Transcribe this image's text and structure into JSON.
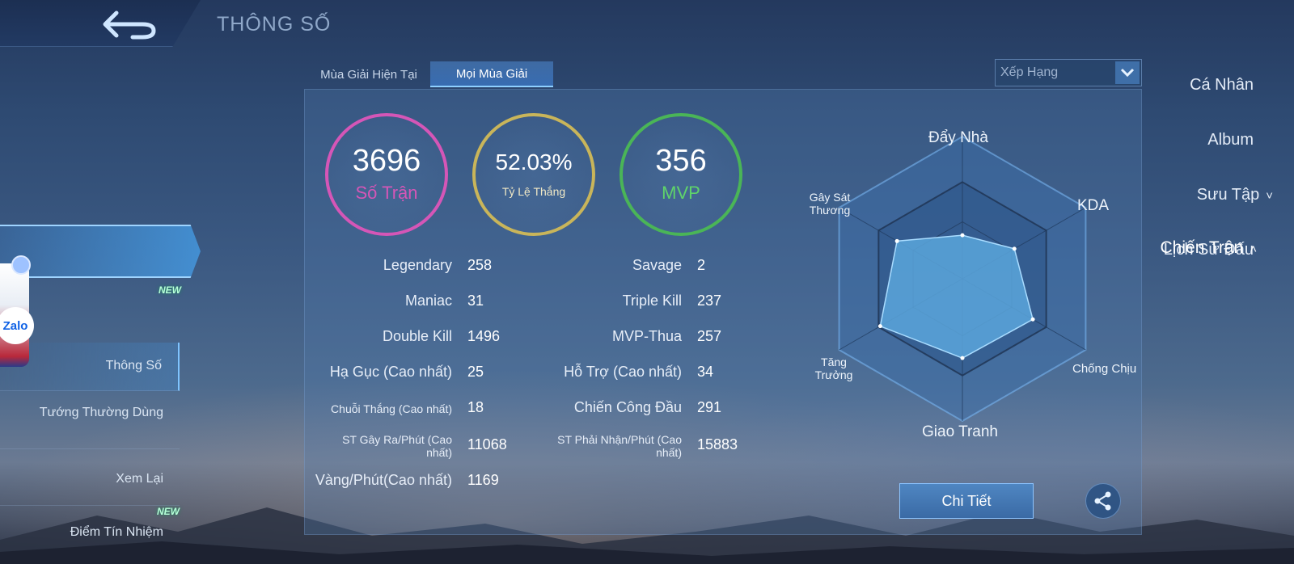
{
  "header": {
    "title": "THÔNG SỐ",
    "back_icon": "back-arrow-icon"
  },
  "sidebar": {
    "items": [
      {
        "label": "Cá Nhân"
      },
      {
        "label": "Album"
      },
      {
        "label": "Sưu Tập",
        "chevron": "˅"
      },
      {
        "label": "Lịch Sử Đấu"
      }
    ],
    "active": {
      "label": "Chiến Trận",
      "chevron": "˄",
      "badge": "NEW"
    },
    "sub_items": [
      {
        "label": "Thông Số"
      },
      {
        "label": "Tướng Thường Dùng"
      },
      {
        "label": "Xem Lại"
      },
      {
        "label": "Điểm Tín Nhiệm",
        "badge": "NEW"
      }
    ],
    "floating": {
      "zalo_label": "Zalo"
    }
  },
  "tabs": [
    {
      "label": "Mùa Giải Hiện Tại"
    },
    {
      "label": "Mọi Mùa Giải"
    }
  ],
  "dropdown": {
    "value": "Xếp Hạng"
  },
  "summary": {
    "matches": {
      "value": "3696",
      "label": "Số Trận",
      "color": "#d556b7"
    },
    "winrate": {
      "value": "52.03%",
      "label": "Tỷ Lệ Thắng",
      "color": "#c9b55a"
    },
    "mvp": {
      "value": "356",
      "label": "MVP",
      "color": "#4ab557"
    }
  },
  "stats_left": [
    {
      "label": "Legendary",
      "value": "258"
    },
    {
      "label": "Maniac",
      "value": "31"
    },
    {
      "label": "Double Kill",
      "value": "1496"
    },
    {
      "label": "Hạ Gục (Cao nhất)",
      "value": "25"
    },
    {
      "label": "Chuỗi Thắng (Cao nhất)",
      "value": "18"
    },
    {
      "label": "ST Gây Ra/Phút (Cao nhất)",
      "value": "11068"
    },
    {
      "label": "Vàng/Phút(Cao nhất)",
      "value": "1169"
    }
  ],
  "stats_right": [
    {
      "label": "Savage",
      "value": "2"
    },
    {
      "label": "Triple Kill",
      "value": "237"
    },
    {
      "label": "MVP-Thua",
      "value": "257"
    },
    {
      "label": "Hỗ Trợ (Cao nhất)",
      "value": "34"
    },
    {
      "label": "Chiến Công Đầu",
      "value": "291"
    },
    {
      "label": "ST Phải Nhận/Phút (Cao nhất)",
      "value": "15883"
    }
  ],
  "radar": {
    "axes": [
      "Đẩy Nhà",
      "KDA",
      "Chống Chịu",
      "Giao Tranh",
      "Tăng Trưởng",
      "Gây Sát Thương"
    ],
    "values": [
      0.45,
      0.62,
      0.84,
      0.82,
      0.98,
      0.78
    ],
    "fill": "#5aa6dc"
  },
  "buttons": {
    "detail": "Chi Tiết",
    "share_icon": "share-icon"
  }
}
